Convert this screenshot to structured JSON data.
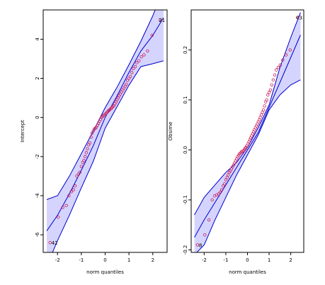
{
  "chart_data": [
    {
      "type": "scatter",
      "variant": "qq-plot-with-confidence-envelope",
      "title": "",
      "xlabel": "norm quantiles",
      "ylabel": "Intercept",
      "xlim": [
        -2.6,
        2.6
      ],
      "ylim": [
        -6.9,
        5.5
      ],
      "xticks": [
        -2,
        -1,
        0,
        1,
        2
      ],
      "yticks": [
        -6,
        -4,
        -2,
        0,
        2,
        4
      ],
      "grid": false,
      "colors": {
        "points": "#cc1f5a",
        "envelope_fill": "#ccccff",
        "envelope_line": "#0000cc",
        "axis": "#000000"
      },
      "envelope": {
        "x": [
          -2.45,
          -2.0,
          -1.5,
          -1.0,
          -0.5,
          0.0,
          0.5,
          1.0,
          1.5,
          2.0,
          2.45
        ],
        "upper": [
          -4.2,
          -4.0,
          -3.0,
          -1.85,
          -0.7,
          0.5,
          1.55,
          2.7,
          3.9,
          5.2,
          6.6
        ],
        "lower": [
          -7.6,
          -6.3,
          -5.0,
          -3.6,
          -2.25,
          -0.55,
          0.55,
          1.65,
          2.6,
          2.75,
          2.9
        ],
        "reference": [
          -5.8,
          -5.0,
          -3.9,
          -2.7,
          -1.45,
          0.0,
          1.1,
          2.3,
          3.4,
          4.2,
          5.1
        ]
      },
      "points": {
        "x": [
          -2.31,
          -1.97,
          -1.78,
          -1.63,
          -1.52,
          -1.42,
          -1.33,
          -1.26,
          -1.19,
          -1.12,
          -1.06,
          -1.0,
          -0.94,
          -0.89,
          -0.84,
          -0.79,
          -0.74,
          -0.69,
          -0.64,
          -0.59,
          -0.55,
          -0.5,
          -0.46,
          -0.41,
          -0.37,
          -0.32,
          -0.28,
          -0.24,
          -0.19,
          -0.15,
          -0.11,
          -0.07,
          -0.03,
          0.03,
          0.07,
          0.11,
          0.15,
          0.19,
          0.24,
          0.28,
          0.32,
          0.37,
          0.41,
          0.46,
          0.5,
          0.55,
          0.59,
          0.64,
          0.69,
          0.74,
          0.79,
          0.84,
          0.89,
          0.94,
          1.0,
          1.06,
          1.12,
          1.19,
          1.26,
          1.33,
          1.42,
          1.52,
          1.63,
          1.78,
          1.97,
          2.31
        ],
        "y": [
          -6.4,
          -5.1,
          -4.6,
          -4.5,
          -4.0,
          -3.8,
          -3.7,
          -3.5,
          -3.0,
          -2.9,
          -2.8,
          -2.5,
          -2.3,
          -2.2,
          -2.0,
          -1.8,
          -1.6,
          -1.4,
          -1.3,
          -1.0,
          -0.8,
          -0.7,
          -0.6,
          -0.55,
          -0.5,
          -0.4,
          -0.3,
          -0.2,
          -0.1,
          0.0,
          0.05,
          0.1,
          0.15,
          0.2,
          0.25,
          0.3,
          0.35,
          0.4,
          0.45,
          0.5,
          0.55,
          0.6,
          0.7,
          0.8,
          0.9,
          1.0,
          1.1,
          1.2,
          1.3,
          1.4,
          1.5,
          1.6,
          1.7,
          1.9,
          2.0,
          2.1,
          2.3,
          2.5,
          2.6,
          2.8,
          2.9,
          3.1,
          3.2,
          3.4,
          4.2,
          5.0
        ]
      },
      "point_labels": [
        {
          "text": "21",
          "x": 2.31,
          "y": 5.0
        },
        {
          "text": "42",
          "x": -2.31,
          "y": -6.4
        }
      ]
    },
    {
      "type": "scatter",
      "variant": "qq-plot-with-confidence-envelope",
      "title": "",
      "xlabel": "norm quantiles",
      "ylabel": "Obsime",
      "xlim": [
        -2.6,
        2.6
      ],
      "ylim": [
        -0.205,
        0.28
      ],
      "xticks": [
        -2,
        -1,
        0,
        1,
        2
      ],
      "yticks": [
        -0.2,
        -0.1,
        0.0,
        0.1,
        0.2
      ],
      "ytick_labels": [
        "-0.2",
        "-0.1",
        "0.0",
        "0.1",
        "0.2"
      ],
      "grid": false,
      "colors": {
        "points": "#cc1f5a",
        "envelope_fill": "#ccccff",
        "envelope_line": "#0000cc",
        "axis": "#000000"
      },
      "envelope": {
        "x": [
          -2.45,
          -2.0,
          -1.5,
          -1.0,
          -0.5,
          0.0,
          0.5,
          1.0,
          1.5,
          2.0,
          2.45
        ],
        "upper": [
          -0.13,
          -0.095,
          -0.07,
          -0.045,
          -0.025,
          0.005,
          0.045,
          0.09,
          0.165,
          0.225,
          0.275
        ],
        "lower": [
          -0.21,
          -0.19,
          -0.14,
          -0.095,
          -0.05,
          -0.01,
          0.03,
          0.08,
          0.11,
          0.13,
          0.14
        ],
        "reference": [
          -0.175,
          -0.14,
          -0.105,
          -0.07,
          -0.035,
          0.0,
          0.035,
          0.085,
          0.135,
          0.185,
          0.23
        ]
      },
      "points": {
        "x": [
          -2.31,
          -1.97,
          -1.78,
          -1.63,
          -1.52,
          -1.42,
          -1.33,
          -1.26,
          -1.19,
          -1.12,
          -1.06,
          -1.0,
          -0.94,
          -0.89,
          -0.84,
          -0.79,
          -0.74,
          -0.69,
          -0.64,
          -0.59,
          -0.55,
          -0.5,
          -0.46,
          -0.41,
          -0.37,
          -0.32,
          -0.28,
          -0.24,
          -0.19,
          -0.15,
          -0.11,
          -0.07,
          -0.03,
          0.03,
          0.07,
          0.11,
          0.15,
          0.19,
          0.24,
          0.28,
          0.32,
          0.37,
          0.41,
          0.46,
          0.5,
          0.55,
          0.59,
          0.64,
          0.69,
          0.74,
          0.79,
          0.84,
          0.89,
          0.94,
          1.0,
          1.06,
          1.12,
          1.19,
          1.26,
          1.33,
          1.42,
          1.52,
          1.63,
          1.78,
          1.97,
          2.31
        ],
        "y": [
          -0.19,
          -0.17,
          -0.14,
          -0.1,
          -0.092,
          -0.09,
          -0.088,
          -0.085,
          -0.08,
          -0.072,
          -0.068,
          -0.06,
          -0.055,
          -0.05,
          -0.045,
          -0.042,
          -0.038,
          -0.034,
          -0.03,
          -0.026,
          -0.022,
          -0.018,
          -0.014,
          -0.011,
          -0.008,
          -0.006,
          -0.004,
          -0.003,
          -0.002,
          0.0,
          0.003,
          0.005,
          0.008,
          0.012,
          0.016,
          0.02,
          0.024,
          0.028,
          0.032,
          0.036,
          0.04,
          0.044,
          0.048,
          0.052,
          0.056,
          0.06,
          0.065,
          0.07,
          0.075,
          0.08,
          0.088,
          0.096,
          0.1,
          0.11,
          0.115,
          0.12,
          0.13,
          0.14,
          0.15,
          0.16,
          0.165,
          0.17,
          0.18,
          0.19,
          0.2,
          0.265
        ]
      },
      "point_labels": [
        {
          "text": "43",
          "x": 2.31,
          "y": 0.265
        },
        {
          "text": "8",
          "x": -2.31,
          "y": -0.19
        }
      ]
    }
  ]
}
